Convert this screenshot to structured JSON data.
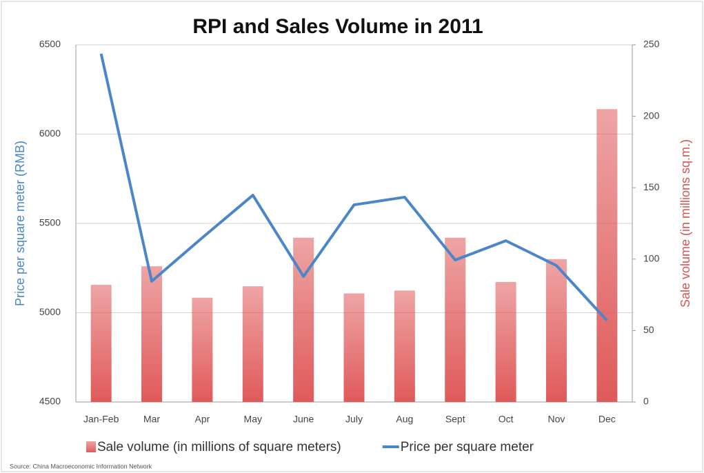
{
  "chart_data": {
    "type": "bar_line",
    "title": "RPI and Sales Volume in 2011",
    "y_label": "Price per square meter (RMB)",
    "y2_label": "Sale volume (in millions sq.m.)",
    "source": "Source: China Macroeconomic Information Network",
    "categories": [
      "Jan-Feb",
      "Mar",
      "Apr",
      "May",
      "June",
      "July",
      "Aug",
      "Sept",
      "Oct",
      "Nov",
      "Dec"
    ],
    "series": [
      {
        "name": "Sale volume (in millions of square meters)",
        "type": "bar",
        "axis": "y2",
        "color": "#e05a5a",
        "values": [
          82,
          95,
          73,
          81,
          115,
          76,
          78,
          115,
          84,
          100,
          205
        ]
      },
      {
        "name": "Price per square meter",
        "type": "line",
        "axis": "y",
        "color": "#4a86c8",
        "values": [
          6450,
          5176,
          5420,
          5658,
          5203,
          5604,
          5647,
          5295,
          5403,
          5264,
          4956
        ]
      }
    ],
    "ylim": [
      4500,
      6500
    ],
    "yticks": [
      4500,
      5000,
      5500,
      6000,
      6500
    ],
    "y2lim": [
      0,
      250
    ],
    "y2ticks": [
      0,
      50,
      100,
      150,
      200,
      250
    ],
    "y_label_color": "#4a86c8",
    "y2_label_color": "#d9534f",
    "grid": true
  }
}
